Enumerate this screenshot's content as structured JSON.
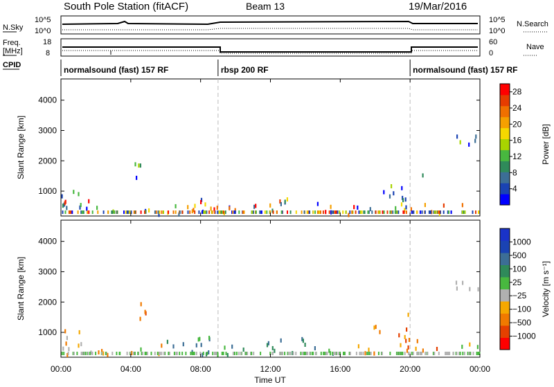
{
  "header": {
    "station": "South Pole Station (fitACF)",
    "beam": "Beam 13",
    "date": "19/Mar/2016"
  },
  "panels": {
    "nsky_label": "N.Sky",
    "nsky_ticks": [
      "10^5",
      "10^0"
    ],
    "nsearch_label": "N.Search",
    "freq_label_1": "Freq.",
    "freq_label_2": "[MHz]",
    "freq_ticks": [
      "18",
      "8"
    ],
    "nave_label": "Nave",
    "nave_ticks": [
      "60",
      "0"
    ],
    "cpid_label": "CPID",
    "cpid_segments": [
      {
        "label": "normalsound (fast) 157 RF",
        "start_h": 0,
        "end_h": 9
      },
      {
        "label": "rbsp 200 RF",
        "start_h": 9,
        "end_h": 20
      },
      {
        "label": "normalsound (fast) 157 RF",
        "start_h": 20,
        "end_h": 24
      }
    ]
  },
  "colors": {
    "power": [
      "#0000ff",
      "#1a43b3",
      "#3c6e96",
      "#2f8a5a",
      "#48b83f",
      "#a8d400",
      "#f5d800",
      "#f5a000",
      "#f07000",
      "#e63c00",
      "#ff0000"
    ],
    "velocity": [
      "#ff0000",
      "#e54000",
      "#f07a00",
      "#f5a800",
      "#b0b0b0",
      "#48b83f",
      "#2f8a5a",
      "#3c6e96",
      "#1a43b3",
      "#1a33c8"
    ]
  },
  "chart_data": [
    {
      "type": "heatmap",
      "name": "power",
      "ylabel": "Slant Range [km]",
      "xlabel": "Time UT",
      "x_ticks": [
        "00:00",
        "04:00",
        "08:00",
        "12:00",
        "16:00",
        "20:00",
        "00:00"
      ],
      "x_range_hours": [
        0,
        24
      ],
      "y_ticks": [
        "1000",
        "2000",
        "3000",
        "4000"
      ],
      "y_range": [
        180,
        4700
      ],
      "colorbar_label": "Power [dB]",
      "colorbar_ticks": [
        "4",
        "8",
        "12",
        "16",
        "20",
        "24",
        "28"
      ],
      "colorbar_range": [
        0,
        30
      ],
      "mode_boundaries_h": [
        9,
        20
      ]
    },
    {
      "type": "heatmap",
      "name": "velocity",
      "ylabel": "Slant Range [km]",
      "xlabel": "Time UT",
      "x_ticks": [
        "00:00",
        "04:00",
        "08:00",
        "12:00",
        "16:00",
        "20:00",
        "00:00"
      ],
      "x_range_hours": [
        0,
        24
      ],
      "y_ticks": [
        "1000",
        "2000",
        "3000",
        "4000"
      ],
      "y_range": [
        180,
        4700
      ],
      "colorbar_label": "Velocity [m s⁻¹]",
      "colorbar_ticks": [
        "1000",
        "500",
        "100",
        "25",
        "−25",
        "−100",
        "−500",
        "−1000"
      ],
      "mode_boundaries_h": [
        9,
        20
      ]
    }
  ]
}
